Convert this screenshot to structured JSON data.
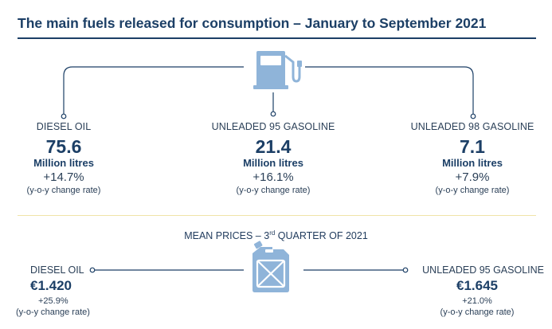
{
  "title": "The main fuels released for consumption – January to September 2021",
  "fuels": [
    {
      "name": "DIESEL OIL",
      "amount": "75.6",
      "unit": "Million litres",
      "change": "+14.7%",
      "note": "(y-o-y change rate)"
    },
    {
      "name": "UNLEADED 95 GASOLINE",
      "amount": "21.4",
      "unit": "Million litres",
      "change": "+16.1%",
      "note": "(y-o-y change rate)"
    },
    {
      "name": "UNLEADED 98 GASOLINE",
      "amount": "7.1",
      "unit": "Million litres",
      "change": "+7.9%",
      "note": "(y-o-y change rate)"
    }
  ],
  "mean_prices": {
    "title_pre": "MEAN PRICES – 3",
    "title_sup": "rd",
    "title_post": " QUARTER OF 2021",
    "items": [
      {
        "name": "DIESEL OIL",
        "price": "€1.420",
        "change": "+25.9%",
        "note": "(y-o-y change rate)"
      },
      {
        "name": "UNLEADED 95 GASOLINE",
        "price": "€1.645",
        "change": "+21.0%",
        "note": "(y-o-y change rate)"
      }
    ]
  },
  "icons": {
    "top": "fuel-pump-icon",
    "bottom": "jerry-can-icon"
  },
  "colors": {
    "navy": "#1c3f66",
    "icon_blue": "#8fb4d9",
    "separator": "#f0e4a8"
  }
}
